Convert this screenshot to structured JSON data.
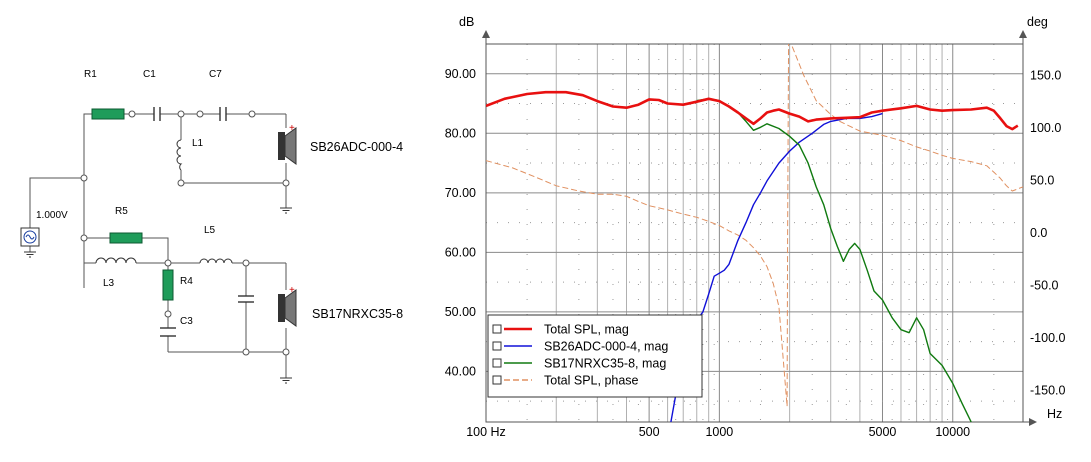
{
  "schematic": {
    "components": {
      "r1": "R1",
      "c1": "C1",
      "c7": "C7",
      "l1": "L1",
      "r5": "R5",
      "l5": "L5",
      "l3": "L3",
      "r4": "R4",
      "c3": "C3"
    },
    "source_label": "1.000V",
    "tweeter_label": "SB26ADC-000-4",
    "woofer_label": "SB17NRXC35-8",
    "polarity_mark": "+",
    "colors": {
      "resistor": "#1f9c5a",
      "wire": "#555555"
    },
    "icons": [
      "voltage-source-icon",
      "ground-icon",
      "speaker-icon",
      "resistor-icon",
      "inductor-icon",
      "capacitor-icon"
    ]
  },
  "chart_data": {
    "type": "line",
    "xlabel": "Hz",
    "ylabel": "dB",
    "y2label": "deg",
    "xscale": "log",
    "xlim": [
      100,
      20000
    ],
    "ylim": [
      31.5,
      95
    ],
    "y2lim": [
      -180,
      180
    ],
    "x_ticks": [
      "100 Hz",
      "500",
      "1000",
      "5000",
      "10000"
    ],
    "y_ticks": [
      "90.00",
      "80.00",
      "70.00",
      "60.00",
      "50.00",
      "40.00"
    ],
    "y2_ticks": [
      "150.0",
      "100.0",
      "50.0",
      "0.0",
      "-50.0",
      "-100.0",
      "-150.0"
    ],
    "grid": true,
    "legend_position": "bottom-left",
    "series": [
      {
        "name": "Total SPL, mag",
        "color": "#e81010",
        "axis": "left",
        "points": [
          [
            100,
            84.6
          ],
          [
            120,
            85.8
          ],
          [
            150,
            86.6
          ],
          [
            180,
            86.9
          ],
          [
            220,
            86.9
          ],
          [
            260,
            86.4
          ],
          [
            300,
            85.4
          ],
          [
            350,
            84.5
          ],
          [
            400,
            84.3
          ],
          [
            450,
            84.8
          ],
          [
            500,
            85.7
          ],
          [
            550,
            85.6
          ],
          [
            600,
            85.0
          ],
          [
            700,
            84.8
          ],
          [
            800,
            85.3
          ],
          [
            900,
            85.8
          ],
          [
            1000,
            85.4
          ],
          [
            1100,
            84.5
          ],
          [
            1200,
            83.5
          ],
          [
            1300,
            82.5
          ],
          [
            1400,
            81.6
          ],
          [
            1500,
            82.5
          ],
          [
            1600,
            83.5
          ],
          [
            1700,
            83.8
          ],
          [
            1800,
            84.0
          ],
          [
            2000,
            83.3
          ],
          [
            2200,
            82.8
          ],
          [
            2400,
            82.0
          ],
          [
            2600,
            82.3
          ],
          [
            3000,
            82.5
          ],
          [
            3500,
            82.6
          ],
          [
            4000,
            82.7
          ],
          [
            4500,
            83.5
          ],
          [
            5000,
            83.8
          ],
          [
            6000,
            84.2
          ],
          [
            7000,
            84.6
          ],
          [
            8000,
            84.0
          ],
          [
            9000,
            83.8
          ],
          [
            10000,
            83.9
          ],
          [
            12000,
            84.0
          ],
          [
            14000,
            84.3
          ],
          [
            15000,
            83.8
          ],
          [
            16000,
            82.5
          ],
          [
            17000,
            81.2
          ],
          [
            18000,
            80.7
          ],
          [
            19000,
            81.3
          ]
        ]
      },
      {
        "name": "SB26ADC-000-4, mag",
        "color": "#1010d8",
        "axis": "left",
        "points": [
          [
            620,
            31.5
          ],
          [
            650,
            36
          ],
          [
            680,
            40
          ],
          [
            720,
            45
          ],
          [
            780,
            48
          ],
          [
            850,
            50
          ],
          [
            900,
            53
          ],
          [
            950,
            56
          ],
          [
            1000,
            56.5
          ],
          [
            1050,
            57
          ],
          [
            1100,
            58
          ],
          [
            1200,
            62
          ],
          [
            1300,
            65
          ],
          [
            1400,
            68
          ],
          [
            1500,
            70
          ],
          [
            1600,
            72
          ],
          [
            1800,
            75
          ],
          [
            2000,
            77
          ],
          [
            2200,
            78.5
          ],
          [
            2500,
            80
          ],
          [
            2800,
            81.5
          ],
          [
            3000,
            82
          ],
          [
            3500,
            82.5
          ],
          [
            4000,
            82.5
          ],
          [
            4500,
            82.8
          ],
          [
            5000,
            83.3
          ]
        ]
      },
      {
        "name": "SB17NRXC35-8, mag",
        "color": "#107a10",
        "axis": "left",
        "points": [
          [
            800,
            85.5
          ],
          [
            900,
            85.8
          ],
          [
            1000,
            85.5
          ],
          [
            1100,
            84.5
          ],
          [
            1200,
            83.5
          ],
          [
            1300,
            82
          ],
          [
            1400,
            80.5
          ],
          [
            1500,
            81
          ],
          [
            1600,
            81.6
          ],
          [
            1800,
            80.8
          ],
          [
            2000,
            79.5
          ],
          [
            2200,
            78
          ],
          [
            2400,
            75
          ],
          [
            2600,
            71
          ],
          [
            2800,
            68
          ],
          [
            3000,
            64
          ],
          [
            3200,
            61
          ],
          [
            3400,
            58.5
          ],
          [
            3600,
            60.5
          ],
          [
            3800,
            61.5
          ],
          [
            4000,
            60.5
          ],
          [
            4300,
            57
          ],
          [
            4600,
            53.5
          ],
          [
            5000,
            52
          ],
          [
            5500,
            49
          ],
          [
            6000,
            47
          ],
          [
            6500,
            46.5
          ],
          [
            7000,
            49
          ],
          [
            7500,
            47
          ],
          [
            8000,
            43
          ],
          [
            9000,
            41
          ],
          [
            10000,
            38
          ],
          [
            11000,
            34.5
          ],
          [
            12000,
            31.5
          ]
        ]
      },
      {
        "name": "Total SPL, phase",
        "color": "#e09060",
        "axis": "right",
        "dashed": true,
        "points": [
          [
            100,
            69
          ],
          [
            130,
            62
          ],
          [
            160,
            54
          ],
          [
            200,
            45
          ],
          [
            250,
            40
          ],
          [
            300,
            37
          ],
          [
            350,
            37
          ],
          [
            400,
            35
          ],
          [
            450,
            30
          ],
          [
            500,
            26
          ],
          [
            600,
            22
          ],
          [
            700,
            18
          ],
          [
            800,
            15
          ],
          [
            900,
            11
          ],
          [
            1000,
            7
          ],
          [
            1100,
            2
          ],
          [
            1200,
            -2
          ],
          [
            1300,
            -7
          ],
          [
            1400,
            -14
          ],
          [
            1500,
            -22
          ],
          [
            1600,
            -32
          ],
          [
            1700,
            -48
          ],
          [
            1800,
            -70
          ],
          [
            1950,
            -165
          ],
          [
            1960,
            -5
          ],
          [
            1980,
            186
          ],
          [
            2100,
            172
          ],
          [
            2300,
            150
          ],
          [
            2600,
            126
          ],
          [
            3000,
            113
          ],
          [
            3300,
            106
          ],
          [
            3600,
            102
          ],
          [
            4000,
            97
          ],
          [
            4500,
            95
          ],
          [
            5000,
            93
          ],
          [
            6000,
            88
          ],
          [
            7000,
            82
          ],
          [
            8000,
            78
          ],
          [
            9000,
            74
          ],
          [
            10000,
            71
          ],
          [
            12000,
            68
          ],
          [
            14000,
            64
          ],
          [
            15000,
            58
          ],
          [
            16000,
            52
          ],
          [
            17000,
            45
          ],
          [
            18000,
            40
          ],
          [
            19000,
            42
          ],
          [
            20000,
            44
          ]
        ]
      }
    ]
  }
}
